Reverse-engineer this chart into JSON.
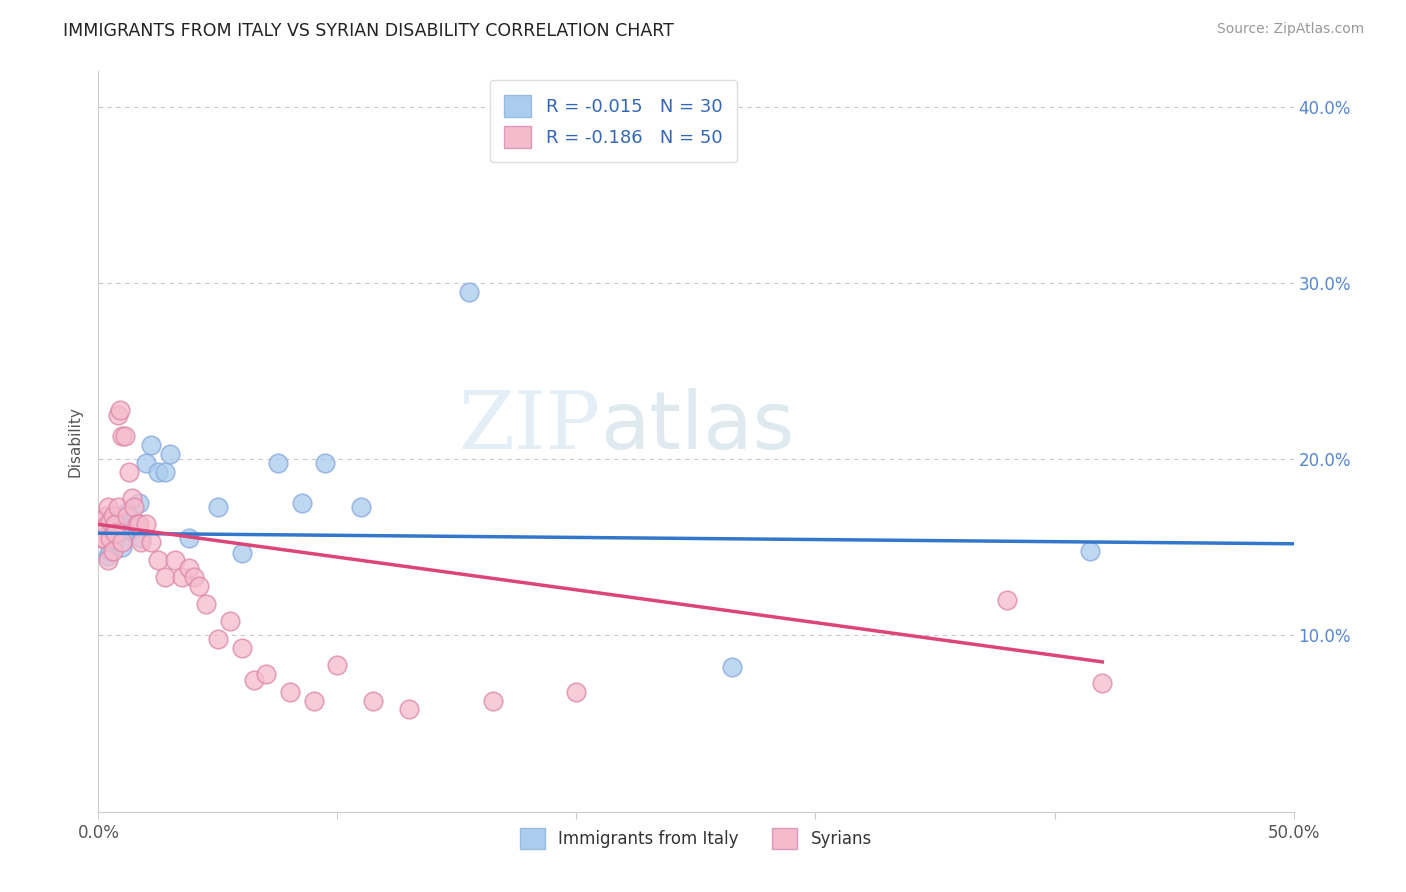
{
  "title": "IMMIGRANTS FROM ITALY VS SYRIAN DISABILITY CORRELATION CHART",
  "source": "Source: ZipAtlas.com",
  "ylabel": "Disability",
  "xlim": [
    0.0,
    0.5
  ],
  "ylim": [
    0.0,
    0.42
  ],
  "x_ticks": [
    0.0,
    0.1,
    0.2,
    0.3,
    0.4,
    0.5
  ],
  "x_tick_labels": [
    "0.0%",
    "",
    "",
    "",
    "",
    "50.0%"
  ],
  "y_ticks": [
    0.1,
    0.2,
    0.3,
    0.4
  ],
  "y_tick_labels": [
    "10.0%",
    "20.0%",
    "30.0%",
    "40.0%"
  ],
  "grid_color": "#c8c8c8",
  "background_color": "#ffffff",
  "italy_color": "#aaccee",
  "italy_edge_color": "#88aadd",
  "italy_line_color": "#3377cc",
  "syrian_color": "#f5bbcc",
  "syrian_edge_color": "#dd88aa",
  "syrian_line_color": "#dd4477",
  "tick_color": "#5588cc",
  "legend_r_italy": "R = -0.015",
  "legend_n_italy": "N = 30",
  "legend_r_syrian": "R = -0.186",
  "legend_n_syrian": "N = 50",
  "watermark_zip": "ZIP",
  "watermark_atlas": "atlas",
  "italy_x": [
    0.004,
    0.005,
    0.006,
    0.007,
    0.008,
    0.009,
    0.01,
    0.011,
    0.012,
    0.013,
    0.014,
    0.015,
    0.016,
    0.017,
    0.018,
    0.02,
    0.022,
    0.025,
    0.028,
    0.03,
    0.038,
    0.05,
    0.06,
    0.075,
    0.085,
    0.095,
    0.11,
    0.155,
    0.265,
    0.415
  ],
  "italy_y": [
    0.145,
    0.148,
    0.152,
    0.155,
    0.158,
    0.162,
    0.15,
    0.165,
    0.17,
    0.167,
    0.16,
    0.165,
    0.162,
    0.175,
    0.155,
    0.198,
    0.208,
    0.193,
    0.193,
    0.203,
    0.155,
    0.173,
    0.147,
    0.198,
    0.175,
    0.198,
    0.173,
    0.295,
    0.082,
    0.148
  ],
  "syrian_x": [
    0.001,
    0.001,
    0.002,
    0.003,
    0.003,
    0.004,
    0.004,
    0.005,
    0.005,
    0.006,
    0.006,
    0.007,
    0.007,
    0.008,
    0.008,
    0.009,
    0.01,
    0.01,
    0.011,
    0.012,
    0.013,
    0.014,
    0.015,
    0.016,
    0.017,
    0.018,
    0.02,
    0.022,
    0.025,
    0.028,
    0.032,
    0.035,
    0.038,
    0.04,
    0.042,
    0.045,
    0.05,
    0.055,
    0.06,
    0.065,
    0.07,
    0.08,
    0.09,
    0.1,
    0.115,
    0.13,
    0.165,
    0.2,
    0.38,
    0.42
  ],
  "syrian_y": [
    0.155,
    0.165,
    0.155,
    0.168,
    0.162,
    0.173,
    0.143,
    0.165,
    0.155,
    0.168,
    0.148,
    0.163,
    0.158,
    0.173,
    0.225,
    0.228,
    0.153,
    0.213,
    0.213,
    0.168,
    0.193,
    0.178,
    0.173,
    0.163,
    0.163,
    0.153,
    0.163,
    0.153,
    0.143,
    0.133,
    0.143,
    0.133,
    0.138,
    0.133,
    0.128,
    0.118,
    0.098,
    0.108,
    0.093,
    0.075,
    0.078,
    0.068,
    0.063,
    0.083,
    0.063,
    0.058,
    0.063,
    0.068,
    0.12,
    0.073
  ],
  "italy_trendline_x": [
    0.0,
    0.5
  ],
  "italy_trendline_y": [
    0.158,
    0.152
  ],
  "syrian_trendline_x": [
    0.0,
    0.42
  ],
  "syrian_trendline_y": [
    0.163,
    0.085
  ],
  "legend_bottom_labels": [
    "Immigrants from Italy",
    "Syrians"
  ]
}
